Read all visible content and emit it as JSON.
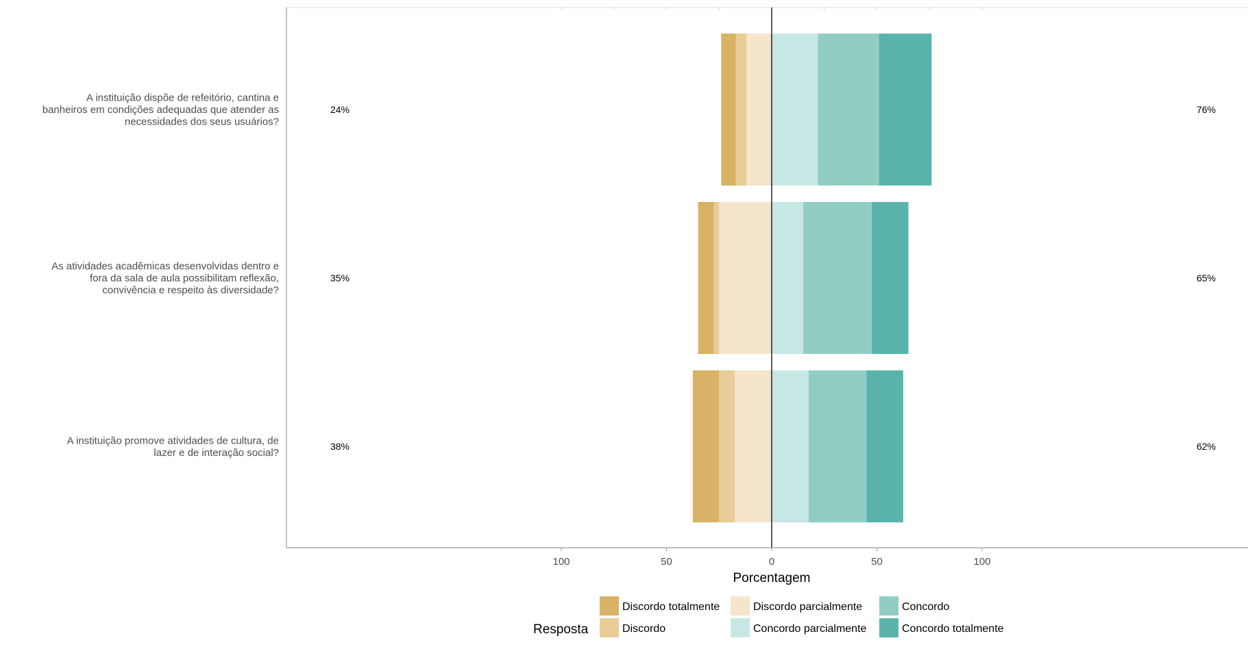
{
  "chart_data": {
    "type": "bar",
    "orientation": "horizontal",
    "stacked": "diverging",
    "xlabel": "Porcentagem",
    "xlim": [
      -100,
      100
    ],
    "x_ticks": [
      -100,
      -50,
      0,
      50,
      100
    ],
    "x_tick_labels": [
      "100",
      "50",
      "0",
      "50",
      "100"
    ],
    "grid": true,
    "legend_title": "Resposta",
    "legend_position": "bottom",
    "categories": [
      "A instituição dispõe de refeitório, cantina e banheiros em condições adequadas que atender as necessidades dos seus usuários?",
      "As atividades acadêmicas desenvolvidas dentro e fora da sala de aula possibilitam reflexão, convivência e respeito às diversidade?",
      "A instituição promove atividades de cultura, de lazer e de interação social?"
    ],
    "category_lines": [
      [
        "A instituição dispõe de refeitório, cantina e",
        "banheiros em condições adequadas que atender as",
        "necessidades dos seus usuários?"
      ],
      [
        "As atividades acadêmicas desenvolvidas dentro e",
        "fora da sala de aula possibilitam reflexão,",
        "convivência e respeito às diversidade?"
      ],
      [
        "A instituição promove atividades de cultura, de",
        "lazer e de interação social?"
      ]
    ],
    "negative_totals": [
      "24%",
      "35%",
      "38%"
    ],
    "positive_totals": [
      "76%",
      "65%",
      "62%"
    ],
    "series": [
      {
        "name": "Discordo totalmente",
        "color": "#D8B365",
        "side": "negative",
        "values": [
          7,
          7.5,
          12.5
        ]
      },
      {
        "name": "Discordo",
        "color": "#E8CD98",
        "side": "negative",
        "values": [
          5,
          2.5,
          7.5
        ]
      },
      {
        "name": "Discordo parcialmente",
        "color": "#F5E5CC",
        "side": "negative",
        "values": [
          12,
          25,
          17.5
        ]
      },
      {
        "name": "Concordo parcialmente",
        "color": "#C7E7E5",
        "side": "positive",
        "values": [
          22,
          15,
          17.5
        ]
      },
      {
        "name": "Concordo",
        "color": "#92CDC4",
        "side": "positive",
        "values": [
          29,
          32.5,
          27.5
        ]
      },
      {
        "name": "Concordo totalmente",
        "color": "#5AB4AC",
        "side": "positive",
        "values": [
          25,
          17.5,
          17.5
        ]
      }
    ],
    "legend_order": [
      "Discordo totalmente",
      "Discordo",
      "Discordo parcialmente",
      "Concordo parcialmente",
      "Concordo",
      "Concordo totalmente"
    ]
  }
}
